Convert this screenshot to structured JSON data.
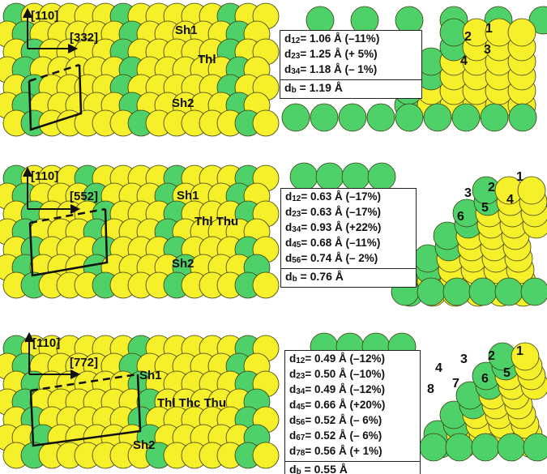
{
  "colors": {
    "yellow_atom": "#f5f02a",
    "green_atom": "#4fd16a",
    "outline": "#3a3a10",
    "line": "#111111"
  },
  "panels": [
    {
      "top_view": {
        "direction_a": "[110]",
        "direction_b": "[332]",
        "step_labels": [
          "Sh1",
          "Thl",
          "Sh2"
        ]
      },
      "side_view": {
        "atom_numbers": [
          "1",
          "2",
          "3",
          "4"
        ],
        "spacings": [
          "d12= 1.06 Å (–11%)",
          "d23= 1.25 Å (+ 5%)",
          "d34= 1.18 Å (– 1%)"
        ],
        "bulk_spacing": "db = 1.19 Å"
      }
    },
    {
      "top_view": {
        "direction_a": "[110]",
        "direction_b": "[552]",
        "step_labels": [
          "Sh1",
          "Thl Thu",
          "Sh2"
        ]
      },
      "side_view": {
        "atom_numbers": [
          "1",
          "2",
          "3",
          "4",
          "5",
          "6"
        ],
        "spacings": [
          "d12= 0.63 Å (–17%)",
          "d23= 0.63 Å (–17%)",
          "d34= 0.93 Å (+22%)",
          "d45= 0.68 Å (–11%)",
          "d56= 0.74 Å (– 2%)"
        ],
        "bulk_spacing": "db = 0.76 Å"
      }
    },
    {
      "top_view": {
        "direction_a": "[110]",
        "direction_b": "[772]",
        "step_labels": [
          "Sh1",
          "Thl Thc Thu",
          "Sh2"
        ]
      },
      "side_view": {
        "atom_numbers": [
          "1",
          "2",
          "3",
          "4",
          "5",
          "6",
          "7",
          "8"
        ],
        "spacings": [
          "d12= 0.49 Å (–12%)",
          "d23= 0.50 Å (–10%)",
          "d34= 0.49 Å (–12%)",
          "d45= 0.66 Å (+20%)",
          "d56= 0.52 Å (– 6%)",
          "d67= 0.52 Å (– 6%)",
          "d78= 0.56 Å (+ 1%)"
        ],
        "bulk_spacing": "db = 0.55 Å"
      }
    }
  ]
}
